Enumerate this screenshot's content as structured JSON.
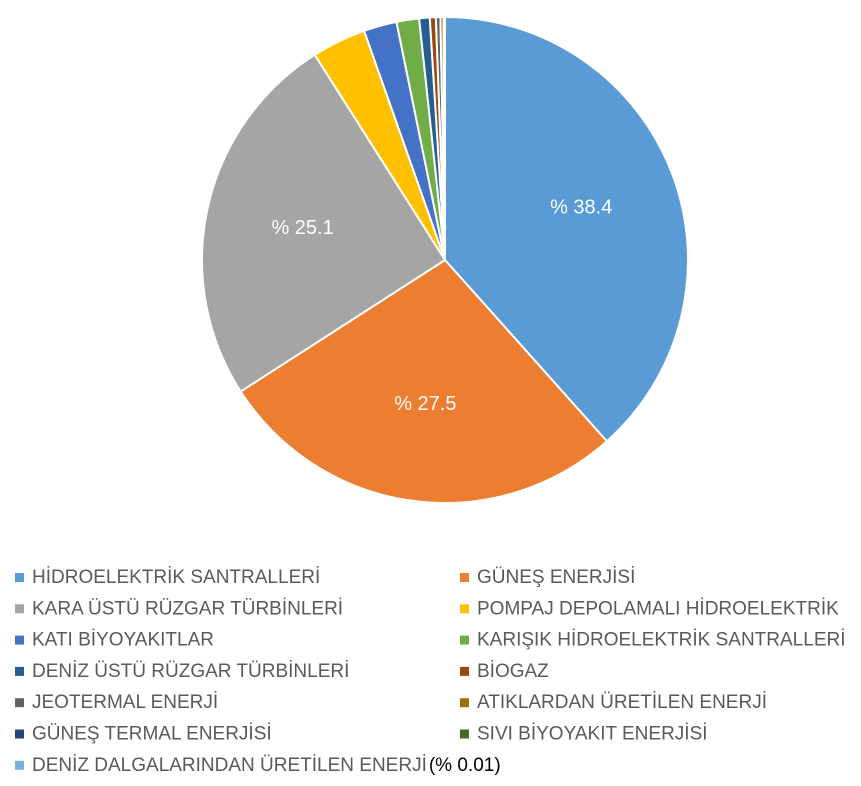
{
  "chart_data": {
    "type": "pie",
    "categories": [
      "HİDROELEKTRİK SANTRALLERİ",
      "GÜNEŞ ENERJİSİ",
      "KARA ÜSTÜ RÜZGAR TÜRBİNLERİ",
      "POMPAJ DEPOLAMALI HİDROELEKTRİK",
      "KATI BİYOYAKITLAR",
      "KARIŞIK HİDROELEKTRİK SANTRALLERİ",
      "DENİZ ÜSTÜ RÜZGAR TÜRBİNLERİ",
      "BİOGAZ",
      "JEOTERMAL ENERJİ",
      "ATIKLARDAN ÜRETİLEN ENERJİ",
      "GÜNEŞ TERMAL ENERJİSİ",
      "SIVI BİYOYAKIT ENERJİSİ",
      "DENİZ DALGALARINDAN ÜRETİLEN ENERJİ"
    ],
    "values": [
      38.4,
      27.5,
      25.1,
      3.6,
      2.2,
      1.5,
      0.7,
      0.4,
      0.3,
      0.2,
      0.05,
      0.04,
      0.01
    ],
    "value_labels": [
      "% 38.4",
      "% 27.5",
      "% 25.1",
      null,
      null,
      null,
      null,
      null,
      null,
      null,
      null,
      null,
      "(% 0.01)"
    ],
    "colors": [
      "#5b9bd5",
      "#ed7d31",
      "#a5a5a5",
      "#ffc000",
      "#4472c4",
      "#70ad47",
      "#255e91",
      "#9e480e",
      "#636363",
      "#997300",
      "#264478",
      "#43682b",
      "#7cafdd"
    ]
  }
}
